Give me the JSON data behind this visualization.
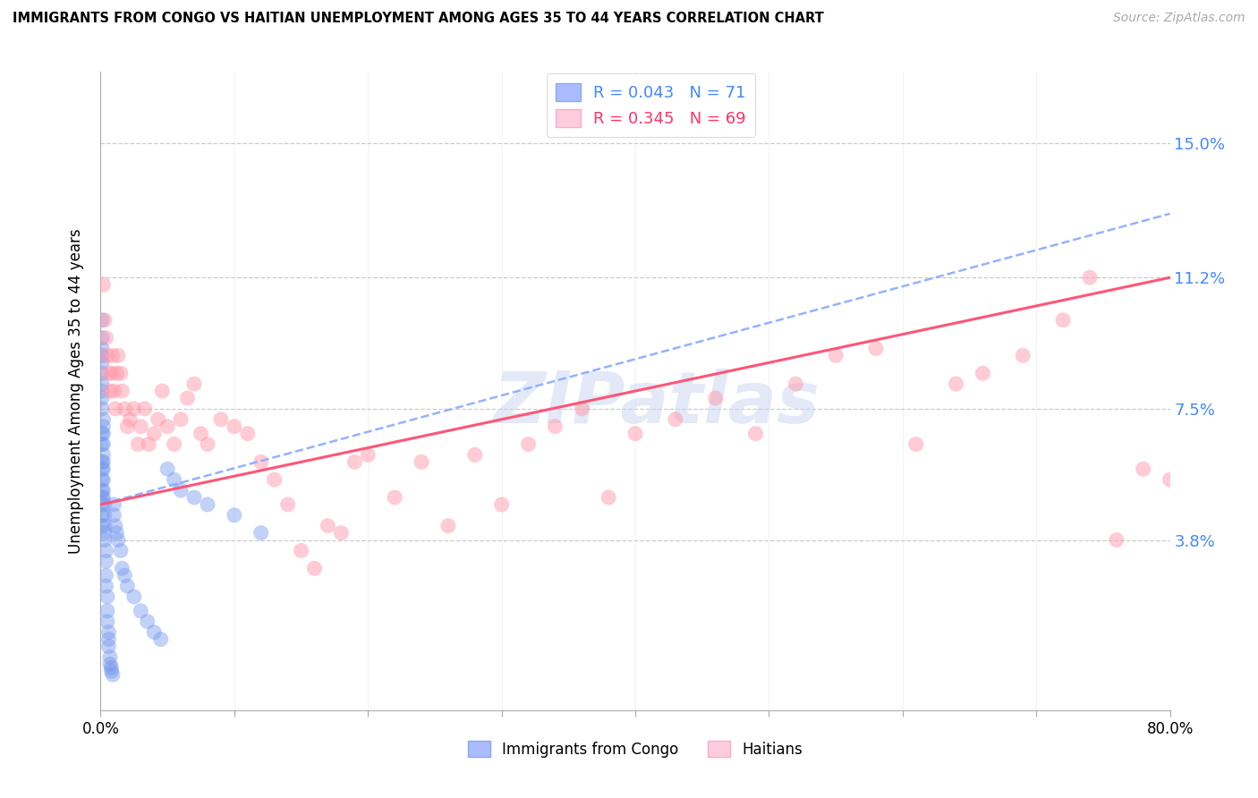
{
  "title": "IMMIGRANTS FROM CONGO VS HAITIAN UNEMPLOYMENT AMONG AGES 35 TO 44 YEARS CORRELATION CHART",
  "source": "Source: ZipAtlas.com",
  "ylabel": "Unemployment Among Ages 35 to 44 years",
  "xlim": [
    0.0,
    0.8
  ],
  "ylim": [
    -0.01,
    0.17
  ],
  "yticks": [
    0.038,
    0.075,
    0.112,
    0.15
  ],
  "ytick_labels": [
    "3.8%",
    "7.5%",
    "11.2%",
    "15.0%"
  ],
  "xtick_positions": [
    0.0,
    0.1,
    0.2,
    0.3,
    0.4,
    0.5,
    0.6,
    0.7,
    0.8
  ],
  "congo_R": 0.043,
  "congo_N": 71,
  "haitian_R": 0.345,
  "haitian_N": 69,
  "congo_color": "#7799ee",
  "haitian_color": "#ff99aa",
  "congo_line_color": "#88aaff",
  "haitian_line_color": "#ff5577",
  "watermark": "ZIPatlas",
  "congo_line_x0": 0.0,
  "congo_line_y0": 0.048,
  "congo_line_x1": 0.8,
  "congo_line_y1": 0.13,
  "haitian_line_x0": 0.0,
  "haitian_line_y0": 0.048,
  "haitian_line_x1": 0.8,
  "haitian_line_y1": 0.112,
  "congo_x": [
    0.001,
    0.001,
    0.001,
    0.001,
    0.001,
    0.001,
    0.001,
    0.001,
    0.001,
    0.001,
    0.001,
    0.001,
    0.001,
    0.001,
    0.001,
    0.001,
    0.001,
    0.001,
    0.001,
    0.001,
    0.002,
    0.002,
    0.002,
    0.002,
    0.002,
    0.002,
    0.002,
    0.002,
    0.002,
    0.002,
    0.003,
    0.003,
    0.003,
    0.003,
    0.003,
    0.004,
    0.004,
    0.004,
    0.004,
    0.005,
    0.005,
    0.005,
    0.006,
    0.006,
    0.006,
    0.007,
    0.007,
    0.008,
    0.008,
    0.009,
    0.01,
    0.01,
    0.011,
    0.012,
    0.013,
    0.015,
    0.016,
    0.018,
    0.02,
    0.025,
    0.03,
    0.035,
    0.04,
    0.045,
    0.05,
    0.055,
    0.06,
    0.07,
    0.08,
    0.1,
    0.12
  ],
  "congo_y": [
    0.075,
    0.078,
    0.08,
    0.082,
    0.085,
    0.088,
    0.09,
    0.092,
    0.095,
    0.1,
    0.068,
    0.065,
    0.06,
    0.058,
    0.055,
    0.052,
    0.05,
    0.048,
    0.045,
    0.042,
    0.072,
    0.07,
    0.068,
    0.065,
    0.062,
    0.06,
    0.058,
    0.055,
    0.052,
    0.05,
    0.048,
    0.045,
    0.042,
    0.04,
    0.038,
    0.035,
    0.032,
    0.028,
    0.025,
    0.022,
    0.018,
    0.015,
    0.012,
    0.01,
    0.008,
    0.005,
    0.003,
    0.002,
    0.001,
    0.0,
    0.048,
    0.045,
    0.042,
    0.04,
    0.038,
    0.035,
    0.03,
    0.028,
    0.025,
    0.022,
    0.018,
    0.015,
    0.012,
    0.01,
    0.058,
    0.055,
    0.052,
    0.05,
    0.048,
    0.045,
    0.04
  ],
  "haitian_x": [
    0.002,
    0.003,
    0.004,
    0.005,
    0.006,
    0.007,
    0.008,
    0.009,
    0.01,
    0.011,
    0.012,
    0.013,
    0.015,
    0.016,
    0.018,
    0.02,
    0.022,
    0.025,
    0.028,
    0.03,
    0.033,
    0.036,
    0.04,
    0.043,
    0.046,
    0.05,
    0.055,
    0.06,
    0.065,
    0.07,
    0.075,
    0.08,
    0.09,
    0.1,
    0.11,
    0.12,
    0.13,
    0.14,
    0.15,
    0.16,
    0.17,
    0.18,
    0.19,
    0.2,
    0.22,
    0.24,
    0.26,
    0.28,
    0.3,
    0.32,
    0.34,
    0.36,
    0.38,
    0.4,
    0.43,
    0.46,
    0.49,
    0.52,
    0.55,
    0.58,
    0.61,
    0.64,
    0.66,
    0.69,
    0.72,
    0.74,
    0.76,
    0.78,
    0.8
  ],
  "haitian_y": [
    0.11,
    0.1,
    0.095,
    0.09,
    0.085,
    0.08,
    0.085,
    0.09,
    0.08,
    0.075,
    0.085,
    0.09,
    0.085,
    0.08,
    0.075,
    0.07,
    0.072,
    0.075,
    0.065,
    0.07,
    0.075,
    0.065,
    0.068,
    0.072,
    0.08,
    0.07,
    0.065,
    0.072,
    0.078,
    0.082,
    0.068,
    0.065,
    0.072,
    0.07,
    0.068,
    0.06,
    0.055,
    0.048,
    0.035,
    0.03,
    0.042,
    0.04,
    0.06,
    0.062,
    0.05,
    0.06,
    0.042,
    0.062,
    0.048,
    0.065,
    0.07,
    0.075,
    0.05,
    0.068,
    0.072,
    0.078,
    0.068,
    0.082,
    0.09,
    0.092,
    0.065,
    0.082,
    0.085,
    0.09,
    0.1,
    0.112,
    0.038,
    0.058,
    0.055
  ]
}
